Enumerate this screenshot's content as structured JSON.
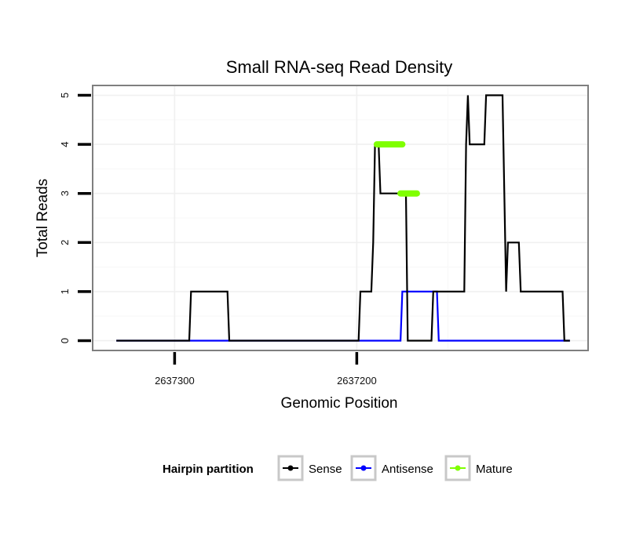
{
  "chart_data": {
    "type": "line",
    "title": "Small RNA-seq Read Density",
    "xlabel": "Genomic Position",
    "ylabel": "Total Reads",
    "xlim": [
      2637345,
      2637073
    ],
    "ylim": [
      -0.2,
      5.2
    ],
    "x_reversed": true,
    "x_ticks": [
      {
        "value": 2637300,
        "label": "2637300"
      },
      {
        "value": 2637200,
        "label": "2637200"
      }
    ],
    "y_ticks": [
      {
        "value": 0,
        "label": "0"
      },
      {
        "value": 1,
        "label": "1"
      },
      {
        "value": 2,
        "label": "2"
      },
      {
        "value": 3,
        "label": "3"
      },
      {
        "value": 4,
        "label": "4"
      },
      {
        "value": 5,
        "label": "5"
      }
    ],
    "grid": true,
    "legend": {
      "title": "Hairpin partition",
      "position": "bottom",
      "entries": [
        "Sense",
        "Antisense",
        "Mature"
      ]
    },
    "series": [
      {
        "name": "Sense",
        "color": "#000000",
        "x": [
          2637332,
          2637292,
          2637291,
          2637271,
          2637270,
          2637199,
          2637198,
          2637192,
          2637191,
          2637190,
          2637188,
          2637187,
          2637173,
          2637172,
          2637167,
          2637166,
          2637159,
          2637158,
          2637141,
          2637140,
          2637139,
          2637138,
          2637130,
          2637129,
          2637120,
          2637119,
          2637118,
          2637117,
          2637116,
          2637111,
          2637110,
          2637100,
          2637099,
          2637087,
          2637086,
          2637083
        ],
        "y": [
          0,
          0,
          1,
          1,
          0,
          0,
          1,
          1,
          2,
          4,
          4,
          3,
          3,
          0,
          0,
          0,
          0,
          1,
          1,
          4,
          5,
          4,
          4,
          5,
          5,
          3,
          1,
          2,
          2,
          2,
          1,
          1,
          1,
          1,
          0,
          0
        ]
      },
      {
        "name": "Antisense",
        "color": "#0000ff",
        "x": [
          2637332,
          2637176,
          2637175,
          2637156,
          2637155,
          2637083
        ],
        "y": [
          0,
          0,
          1,
          1,
          0,
          0
        ]
      },
      {
        "name": "Mature",
        "color": "#7fff00",
        "segments": [
          {
            "x": [
              2637189,
              2637175
            ],
            "y": [
              4,
              4
            ]
          },
          {
            "x": [
              2637176,
              2637167
            ],
            "y": [
              3,
              3
            ]
          }
        ]
      }
    ]
  }
}
